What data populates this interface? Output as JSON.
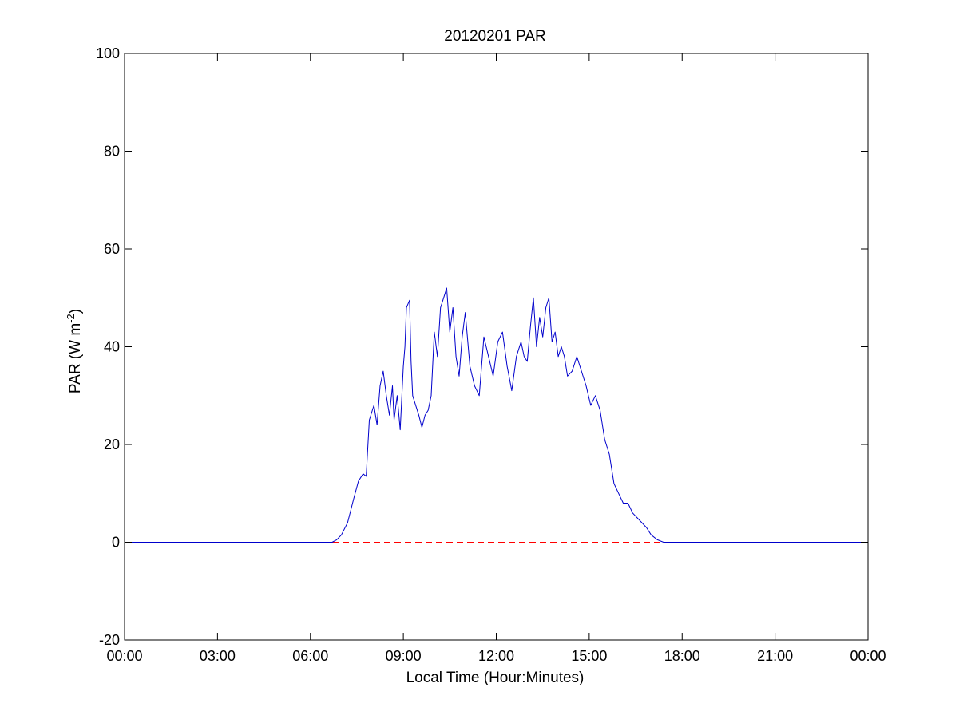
{
  "chart_data": {
    "type": "line",
    "title": "20120201 PAR",
    "xlabel": "Local Time (Hour:Minutes)",
    "ylabel": {
      "base": "PAR (W m",
      "superscript": "-2",
      "suffix": ")"
    },
    "xlim": [
      0,
      24
    ],
    "ylim": [
      -20,
      100
    ],
    "x_ticks": [
      {
        "value": 0,
        "label": "00:00"
      },
      {
        "value": 3,
        "label": "03:00"
      },
      {
        "value": 6,
        "label": "06:00"
      },
      {
        "value": 9,
        "label": "09:00"
      },
      {
        "value": 12,
        "label": "12:00"
      },
      {
        "value": 15,
        "label": "15:00"
      },
      {
        "value": 18,
        "label": "18:00"
      },
      {
        "value": 21,
        "label": "21:00"
      },
      {
        "value": 24,
        "label": "00:00"
      }
    ],
    "y_ticks": [
      {
        "value": -20,
        "label": "-20"
      },
      {
        "value": 0,
        "label": "0"
      },
      {
        "value": 20,
        "label": "20"
      },
      {
        "value": 40,
        "label": "40"
      },
      {
        "value": 60,
        "label": "60"
      },
      {
        "value": 80,
        "label": "80"
      },
      {
        "value": 100,
        "label": "100"
      }
    ],
    "grid": false,
    "reference_line": {
      "y": 0,
      "style": "dashed",
      "color": "#ff0000"
    },
    "series": [
      {
        "color": "#0000cc",
        "x": [
          0,
          6.5,
          6.7,
          6.85,
          7.0,
          7.2,
          7.4,
          7.55,
          7.7,
          7.8,
          7.9,
          8.0,
          8.05,
          8.15,
          8.25,
          8.35,
          8.45,
          8.55,
          8.65,
          8.7,
          8.8,
          8.9,
          9.0,
          9.05,
          9.1,
          9.2,
          9.25,
          9.3,
          9.4,
          9.5,
          9.6,
          9.7,
          9.8,
          9.9,
          10.0,
          10.1,
          10.2,
          10.3,
          10.4,
          10.5,
          10.6,
          10.7,
          10.8,
          10.9,
          11.0,
          11.15,
          11.3,
          11.45,
          11.6,
          11.75,
          11.9,
          12.05,
          12.2,
          12.35,
          12.5,
          12.65,
          12.8,
          12.9,
          13.0,
          13.1,
          13.2,
          13.3,
          13.4,
          13.5,
          13.6,
          13.7,
          13.8,
          13.9,
          14.0,
          14.1,
          14.2,
          14.3,
          14.45,
          14.6,
          14.75,
          14.9,
          15.05,
          15.2,
          15.35,
          15.5,
          15.65,
          15.8,
          15.95,
          16.1,
          16.25,
          16.4,
          16.55,
          16.7,
          16.85,
          17.0,
          17.2,
          17.4,
          17.6,
          17.8,
          18.0,
          24
        ],
        "values": [
          0,
          0,
          0,
          0.5,
          1.5,
          4,
          9,
          12.5,
          14,
          13.5,
          25,
          27,
          28,
          24,
          32,
          35,
          30,
          26,
          32,
          25,
          30,
          23,
          36,
          40,
          48,
          49.5,
          37,
          30,
          28,
          26,
          23.5,
          26,
          27,
          30,
          43,
          38,
          48,
          50,
          52,
          43,
          48,
          38,
          34,
          42,
          47,
          36,
          32,
          30,
          42,
          38,
          34,
          41,
          43,
          36,
          31,
          38,
          41,
          38,
          37,
          44,
          50,
          40,
          46,
          42,
          48,
          50,
          41,
          43,
          38,
          40,
          38,
          34,
          35,
          38,
          35,
          32,
          28,
          30,
          27,
          21,
          18,
          12,
          10,
          8,
          8,
          6,
          5,
          4,
          3,
          1.5,
          0.5,
          0,
          0,
          0,
          0,
          0
        ]
      }
    ]
  }
}
